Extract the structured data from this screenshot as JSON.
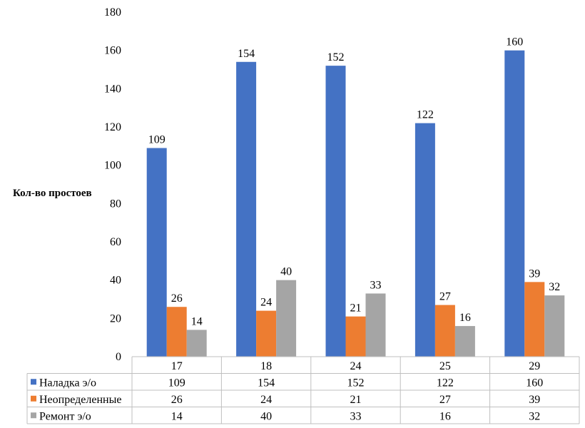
{
  "chart_data": {
    "type": "bar",
    "title": "",
    "xlabel": "",
    "ylabel": "Кол-во простоев",
    "ylim": [
      0,
      180
    ],
    "ytick_step": 20,
    "grid": false,
    "legend": "data-table",
    "categories": [
      "17",
      "18",
      "24",
      "25",
      "29"
    ],
    "series": [
      {
        "name": "Наладка э/о",
        "color": "#4472C4",
        "values": [
          109,
          154,
          152,
          122,
          160
        ]
      },
      {
        "name": "Неопределенные",
        "color": "#ED7D31",
        "values": [
          26,
          24,
          21,
          27,
          39
        ]
      },
      {
        "name": "Ремонт э/о",
        "color": "#A5A5A5",
        "values": [
          14,
          40,
          33,
          16,
          32
        ]
      }
    ]
  }
}
